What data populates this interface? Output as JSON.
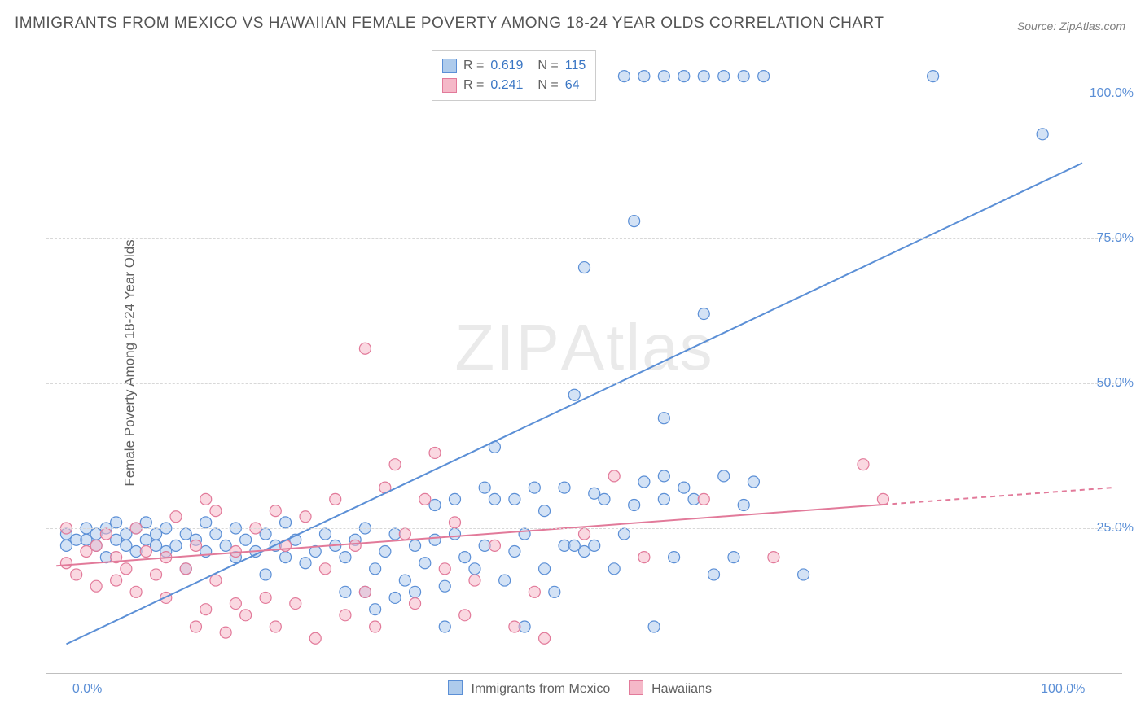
{
  "title": "IMMIGRANTS FROM MEXICO VS HAWAIIAN FEMALE POVERTY AMONG 18-24 YEAR OLDS CORRELATION CHART",
  "source": "Source: ZipAtlas.com",
  "ylabel": "Female Poverty Among 18-24 Year Olds",
  "watermark_a": "ZIP",
  "watermark_b": "Atlas",
  "chart": {
    "type": "scatter",
    "xlim": [
      -4,
      104
    ],
    "ylim": [
      0,
      108
    ],
    "xtick_labels": [
      "0.0%",
      "100.0%"
    ],
    "xtick_positions": [
      0,
      100
    ],
    "ytick_labels": [
      "25.0%",
      "50.0%",
      "75.0%",
      "100.0%"
    ],
    "ytick_positions": [
      25,
      50,
      75,
      100
    ],
    "grid_color": "#d8d8d8",
    "background_color": "#ffffff",
    "axis_color": "#bfbfbf",
    "marker_radius": 7,
    "marker_stroke_width": 1.2,
    "line_width": 2,
    "series": [
      {
        "name": "Immigrants from Mexico",
        "fill": "#aecbec",
        "stroke": "#5b8fd6",
        "fill_opacity": 0.55,
        "R": 0.619,
        "N": 115,
        "trend": {
          "x1": -2,
          "y1": 5,
          "x2": 100,
          "y2": 88,
          "dash_from_x": null
        },
        "points": [
          [
            -2,
            24
          ],
          [
            -2,
            22
          ],
          [
            -1,
            23
          ],
          [
            0,
            25
          ],
          [
            0,
            23
          ],
          [
            1,
            22
          ],
          [
            1,
            24
          ],
          [
            2,
            25
          ],
          [
            2,
            20
          ],
          [
            3,
            23
          ],
          [
            3,
            26
          ],
          [
            4,
            22
          ],
          [
            4,
            24
          ],
          [
            5,
            21
          ],
          [
            5,
            25
          ],
          [
            6,
            26
          ],
          [
            6,
            23
          ],
          [
            7,
            22
          ],
          [
            7,
            24
          ],
          [
            8,
            21
          ],
          [
            8,
            25
          ],
          [
            9,
            22
          ],
          [
            10,
            18
          ],
          [
            10,
            24
          ],
          [
            11,
            23
          ],
          [
            12,
            21
          ],
          [
            12,
            26
          ],
          [
            13,
            24
          ],
          [
            14,
            22
          ],
          [
            15,
            20
          ],
          [
            15,
            25
          ],
          [
            16,
            23
          ],
          [
            17,
            21
          ],
          [
            18,
            24
          ],
          [
            18,
            17
          ],
          [
            19,
            22
          ],
          [
            20,
            20
          ],
          [
            20,
            26
          ],
          [
            21,
            23
          ],
          [
            22,
            19
          ],
          [
            23,
            21
          ],
          [
            24,
            24
          ],
          [
            25,
            22
          ],
          [
            26,
            20
          ],
          [
            27,
            23
          ],
          [
            28,
            14
          ],
          [
            28,
            25
          ],
          [
            29,
            18
          ],
          [
            30,
            21
          ],
          [
            31,
            24
          ],
          [
            32,
            16
          ],
          [
            33,
            22
          ],
          [
            34,
            19
          ],
          [
            35,
            23
          ],
          [
            36,
            15
          ],
          [
            37,
            24
          ],
          [
            38,
            20
          ],
          [
            39,
            18
          ],
          [
            40,
            22
          ],
          [
            41,
            39
          ],
          [
            42,
            16
          ],
          [
            43,
            21
          ],
          [
            44,
            24
          ],
          [
            45,
            32
          ],
          [
            46,
            18
          ],
          [
            47,
            14
          ],
          [
            48,
            22
          ],
          [
            49,
            48
          ],
          [
            50,
            21
          ],
          [
            50,
            70
          ],
          [
            51,
            31
          ],
          [
            52,
            30
          ],
          [
            53,
            18
          ],
          [
            54,
            24
          ],
          [
            55,
            78
          ],
          [
            55,
            29
          ],
          [
            56,
            33
          ],
          [
            57,
            8
          ],
          [
            58,
            44
          ],
          [
            58,
            34
          ],
          [
            59,
            20
          ],
          [
            60,
            32
          ],
          [
            61,
            30
          ],
          [
            62,
            62
          ],
          [
            63,
            17
          ],
          [
            64,
            34
          ],
          [
            65,
            20
          ],
          [
            66,
            29
          ],
          [
            67,
            33
          ],
          [
            72,
            17
          ],
          [
            54,
            103
          ],
          [
            56,
            103
          ],
          [
            58,
            103
          ],
          [
            60,
            103
          ],
          [
            62,
            103
          ],
          [
            64,
            103
          ],
          [
            66,
            103
          ],
          [
            68,
            103
          ],
          [
            85,
            103
          ],
          [
            96,
            93
          ],
          [
            41,
            30
          ],
          [
            43,
            30
          ],
          [
            46,
            28
          ],
          [
            48,
            32
          ],
          [
            37,
            30
          ],
          [
            35,
            29
          ],
          [
            40,
            32
          ],
          [
            58,
            30
          ],
          [
            33,
            14
          ],
          [
            36,
            8
          ],
          [
            44,
            8
          ],
          [
            26,
            14
          ],
          [
            29,
            11
          ],
          [
            49,
            22
          ],
          [
            51,
            22
          ],
          [
            31,
            13
          ]
        ]
      },
      {
        "name": "Hawaiians",
        "fill": "#f5b8c8",
        "stroke": "#e27a9a",
        "fill_opacity": 0.55,
        "R": 0.241,
        "N": 64,
        "trend": {
          "x1": -3,
          "y1": 18.5,
          "x2": 103,
          "y2": 32,
          "dash_from_x": 80
        },
        "points": [
          [
            -2,
            25
          ],
          [
            -2,
            19
          ],
          [
            -1,
            17
          ],
          [
            0,
            21
          ],
          [
            1,
            15
          ],
          [
            1,
            22
          ],
          [
            2,
            24
          ],
          [
            3,
            16
          ],
          [
            3,
            20
          ],
          [
            4,
            18
          ],
          [
            5,
            25
          ],
          [
            5,
            14
          ],
          [
            6,
            21
          ],
          [
            7,
            17
          ],
          [
            8,
            20
          ],
          [
            8,
            13
          ],
          [
            9,
            27
          ],
          [
            10,
            18
          ],
          [
            11,
            8
          ],
          [
            11,
            22
          ],
          [
            12,
            30
          ],
          [
            12,
            11
          ],
          [
            13,
            16
          ],
          [
            13,
            28
          ],
          [
            14,
            7
          ],
          [
            15,
            21
          ],
          [
            15,
            12
          ],
          [
            16,
            10
          ],
          [
            17,
            25
          ],
          [
            18,
            13
          ],
          [
            19,
            28
          ],
          [
            19,
            8
          ],
          [
            20,
            22
          ],
          [
            21,
            12
          ],
          [
            22,
            27
          ],
          [
            23,
            6
          ],
          [
            24,
            18
          ],
          [
            25,
            30
          ],
          [
            26,
            10
          ],
          [
            27,
            22
          ],
          [
            28,
            56
          ],
          [
            28,
            14
          ],
          [
            29,
            8
          ],
          [
            30,
            32
          ],
          [
            31,
            36
          ],
          [
            32,
            24
          ],
          [
            33,
            12
          ],
          [
            34,
            30
          ],
          [
            35,
            38
          ],
          [
            36,
            18
          ],
          [
            37,
            26
          ],
          [
            38,
            10
          ],
          [
            39,
            16
          ],
          [
            41,
            22
          ],
          [
            43,
            8
          ],
          [
            45,
            14
          ],
          [
            46,
            6
          ],
          [
            50,
            24
          ],
          [
            53,
            34
          ],
          [
            56,
            20
          ],
          [
            62,
            30
          ],
          [
            69,
            20
          ],
          [
            78,
            36
          ],
          [
            80,
            30
          ]
        ]
      }
    ]
  },
  "legend_top": {
    "r_label": "R =",
    "n_label": "N ="
  },
  "legend_bottom": {
    "s1": "Immigrants from Mexico",
    "s2": "Hawaiians"
  }
}
